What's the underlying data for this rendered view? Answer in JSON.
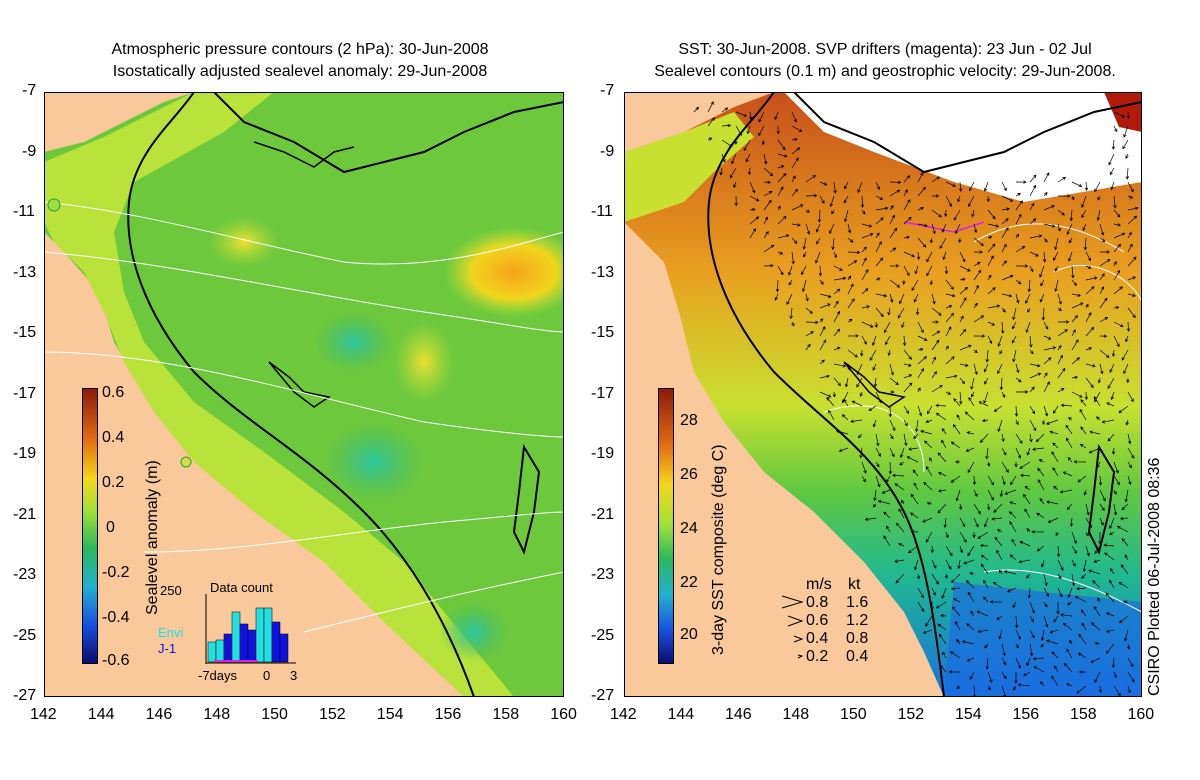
{
  "left_panel": {
    "title_line1": "Atmospheric pressure contours (2 hPa): 30-Jun-2008",
    "title_line2": "Isostatically adjusted sealevel anomaly: 29-Jun-2008",
    "colorbar_label": "Sealevel anomaly (m)",
    "colorbar_ticks": [
      "0.6",
      "0.4",
      "0.2",
      "0",
      "-0.2",
      "-0.4",
      "-0.6"
    ],
    "inset": {
      "title": "Data count",
      "y_max_label": "250",
      "series1": "Envi",
      "series2": "J-1",
      "x_labels": [
        "-7days",
        "0",
        "3"
      ],
      "colors": {
        "envi": "#22e0e0",
        "j1": "#1010e0"
      }
    }
  },
  "right_panel": {
    "title_line1": "SST: 30-Jun-2008. SVP drifters (magenta): 23 Jun - 02 Jul",
    "title_line2": "Sealevel contours (0.1 m) and geostrophic velocity: 29-Jun-2008.",
    "colorbar_label": "3-day SST composite (deg C)",
    "colorbar_ticks": [
      "28",
      "26",
      "24",
      "22",
      "20"
    ],
    "legend": {
      "header_ms": "m/s",
      "header_kt": "kt",
      "rows": [
        [
          "0.8",
          "1.6"
        ],
        [
          "0.6",
          "1.2"
        ],
        [
          "0.4",
          "0.8"
        ],
        [
          "0.2",
          "0.4"
        ]
      ]
    }
  },
  "axes": {
    "lat_ticks": [
      "-7",
      "-9",
      "-11",
      "-13",
      "-15",
      "-17",
      "-19",
      "-21",
      "-23",
      "-25",
      "-27"
    ],
    "lon_ticks": [
      "142",
      "144",
      "146",
      "148",
      "150",
      "152",
      "154",
      "156",
      "158",
      "160"
    ]
  },
  "credit": "CSIRO Plotted 06-Jul-2008 08:36",
  "colors": {
    "land": "#f9c89b",
    "coast": "#000000",
    "contour": "#ffffff"
  }
}
